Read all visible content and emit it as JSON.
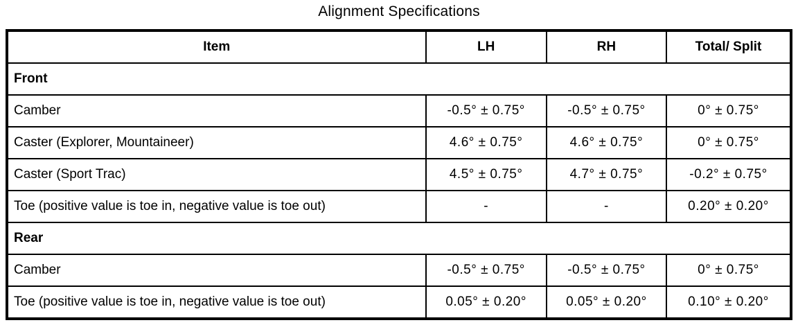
{
  "title": "Alignment Specifications",
  "table": {
    "headers": [
      "Item",
      "LH",
      "RH",
      "Total/ Split"
    ],
    "sections": [
      {
        "name": "Front",
        "rows": [
          {
            "item": "Camber",
            "lh": "-0.5° ± 0.75°",
            "rh": "-0.5° ± 0.75°",
            "total": "0° ± 0.75°"
          },
          {
            "item": "Caster (Explorer, Mountaineer)",
            "lh": "4.6° ± 0.75°",
            "rh": "4.6° ± 0.75°",
            "total": "0° ± 0.75°"
          },
          {
            "item": "Caster (Sport Trac)",
            "lh": "4.5° ± 0.75°",
            "rh": "4.7° ± 0.75°",
            "total": "-0.2° ± 0.75°"
          },
          {
            "item": "Toe (positive value is toe in, negative value is toe out)",
            "lh": "-",
            "rh": "-",
            "total": "0.20° ± 0.20°"
          }
        ]
      },
      {
        "name": "Rear",
        "rows": [
          {
            "item": "Camber",
            "lh": "-0.5° ± 0.75°",
            "rh": "-0.5° ± 0.75°",
            "total": "0° ± 0.75°"
          },
          {
            "item": "Toe (positive value is toe in, negative value is toe out)",
            "lh": "0.05° ± 0.20°",
            "rh": "0.05° ± 0.20°",
            "total": "0.10° ± 0.20°"
          }
        ]
      }
    ]
  }
}
